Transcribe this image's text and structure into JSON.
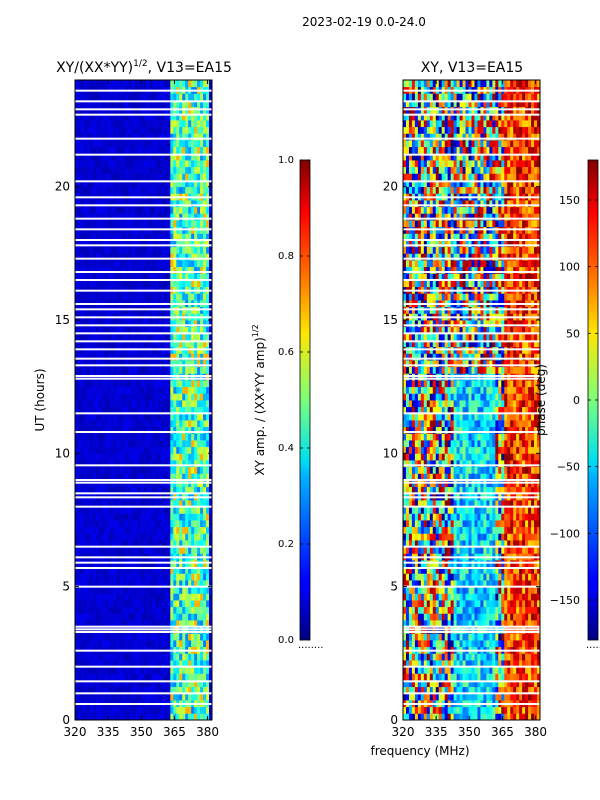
{
  "suptitle": "2023-02-19 0.0-24.0",
  "xlabel_shared": "frequency (MHz)",
  "chart_data": [
    {
      "type": "heatmap",
      "title": "XY/(XX*YY)",
      "title_sup": "1/2",
      "title_suffix": ", V13=EA15",
      "xlabel": "",
      "ylabel": "UT (hours)",
      "xlim": [
        320,
        382
      ],
      "ylim": [
        0,
        24
      ],
      "xticks": [
        320,
        335,
        350,
        365,
        380
      ],
      "yticks": [
        0,
        5,
        10,
        15,
        20
      ],
      "colorbar": {
        "label": "XY amp. / (XX*YY amp)",
        "label_sup": "1/2",
        "range": [
          0.0,
          1.0
        ],
        "ticks": [
          "0.0",
          "0.2",
          "0.4",
          "0.6",
          "0.8",
          "1.0"
        ],
        "colormap": "jet"
      },
      "gap_hours": [
        0.6,
        1.0,
        1.45,
        2.0,
        2.6,
        3.3,
        3.4,
        3.5,
        5.0,
        5.7,
        5.9,
        6.1,
        6.5,
        8.0,
        8.35,
        8.5,
        8.9,
        9.0,
        9.55,
        10.8,
        11.5,
        12.8,
        12.9,
        13.3,
        13.55,
        13.9,
        14.2,
        14.5,
        14.8,
        15.1,
        15.4,
        15.6,
        16.1,
        16.5,
        16.8,
        17.3,
        17.8,
        18.0,
        18.4,
        18.8,
        19.3,
        19.6,
        20.2,
        21.2,
        21.8,
        22.7,
        22.9,
        23.2,
        23.6
      ],
      "notes": "Low amplitude (~0.0-0.1) below ~363 MHz; high amplitude (~0.3-0.6) in channels ~363-380 MHz"
    },
    {
      "type": "heatmap",
      "title": "XY, V13=EA15",
      "xlabel": "frequency (MHz)",
      "ylabel": "",
      "xlim": [
        320,
        382
      ],
      "ylim": [
        0,
        24
      ],
      "xticks": [
        320,
        335,
        350,
        365,
        380
      ],
      "yticks": [
        0,
        5,
        10,
        15,
        20
      ],
      "colorbar": {
        "label": "phase (deg)",
        "range": [
          -180,
          180
        ],
        "ticks": [
          "150",
          "100",
          "50",
          "0",
          "−50",
          "−100",
          "−150"
        ],
        "colormap": "jet"
      },
      "gap_hours": [
        0.6,
        1.0,
        1.45,
        2.0,
        2.6,
        3.3,
        3.4,
        3.5,
        5.0,
        5.7,
        5.9,
        6.1,
        6.5,
        8.0,
        8.35,
        8.5,
        8.9,
        9.0,
        9.55,
        10.8,
        11.5,
        12.8,
        12.9,
        13.3,
        13.55,
        13.9,
        14.2,
        14.5,
        14.8,
        15.1,
        15.4,
        15.6,
        16.1,
        16.5,
        16.8,
        17.3,
        17.8,
        18.0,
        18.4,
        18.8,
        19.3,
        19.6,
        20.2,
        21.2,
        21.8,
        22.7,
        22.9,
        23.2,
        23.6
      ],
      "notes": "Phase wraps across full -180..180 range; mostly ~-120..-60 deg between 345-360 MHz for 0-13 h"
    }
  ]
}
